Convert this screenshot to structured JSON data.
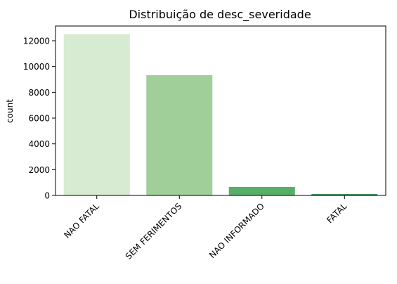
{
  "chart_data": {
    "type": "bar",
    "title": "Distribuição de desc_severidade",
    "xlabel": "",
    "ylabel": "count",
    "categories": [
      "NAO FATAL",
      "SEM FERIMENTOS",
      "NAO INFORMADO",
      "FATAL"
    ],
    "values": [
      12520,
      9330,
      660,
      100
    ],
    "colors": [
      "#d6ebd1",
      "#a0cf9a",
      "#58ae66",
      "#1e7f3e"
    ],
    "ylim": [
      0,
      13146
    ],
    "yticks": [
      0,
      2000,
      4000,
      6000,
      8000,
      10000,
      12000
    ],
    "grid": false,
    "legend": "none"
  }
}
